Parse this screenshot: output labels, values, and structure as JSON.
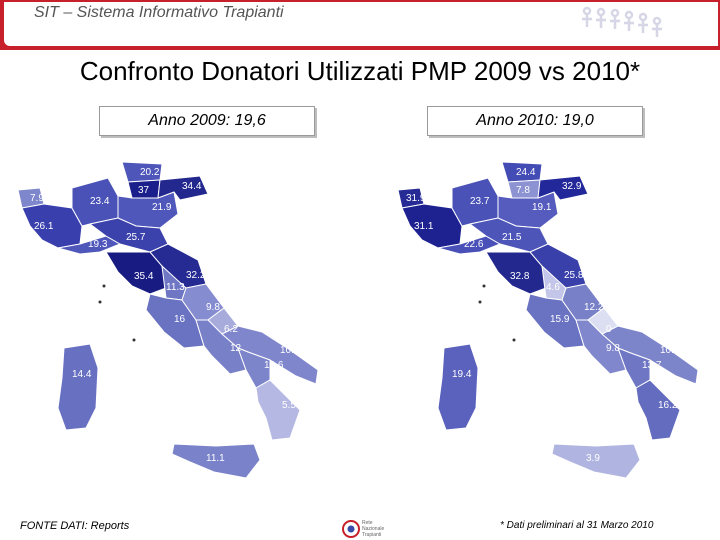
{
  "header": {
    "title": "SIT – Sistema Informativo Trapianti"
  },
  "main_title": "Confronto Donatori Utilizzati PMP 2009 vs 2010*",
  "maps": [
    {
      "label": "Anno 2009: 19,6",
      "values": {
        "aosta": "7.9",
        "piemonte": "26.1",
        "lombardia": "23.4",
        "bolzano": "20.2",
        "trento": "37",
        "veneto": "21.9",
        "friuli": "34.4",
        "liguria": "19.3",
        "emilia": "25.7",
        "toscana": "35.4",
        "marche": "32.2",
        "umbria": "11.3",
        "abruzzo": "9.8",
        "lazio": "16",
        "molise": "6.2",
        "campania": "12",
        "puglia": "10.1",
        "basilicata": "10.6",
        "calabria": "5.5",
        "sicilia": "11.1",
        "sardegna": "14.4"
      }
    },
    {
      "label": "Anno 2010: 19,0",
      "values": {
        "aosta": "31.9",
        "piemonte": "31.1",
        "lombardia": "23.7",
        "bolzano": "24.4",
        "trento": "7.8",
        "veneto": "19.1",
        "friuli": "32.9",
        "liguria": "22.6",
        "emilia": "21.5",
        "toscana": "32.8",
        "marche": "25.8",
        "umbria": "4.6",
        "abruzzo": "12.2",
        "lazio": "15.9",
        "molise": "0",
        "campania": "9.8",
        "puglia": "10.9",
        "basilicata": "13.7",
        "calabria": "16.2",
        "sicilia": "3.9",
        "sardegna": "19.4"
      }
    }
  ],
  "footer": {
    "source": "FONTE DATI: Reports",
    "note": "* Dati preliminari al 31 Marzo 2010",
    "logo_text": [
      "Rete",
      "Nazionale",
      "Trapianti"
    ]
  },
  "colors": {
    "accent": "#c8202a",
    "dark_blue": "#1a1f8c",
    "mid_blue": "#4a52b8",
    "light_blue": "#b4b8e2"
  }
}
